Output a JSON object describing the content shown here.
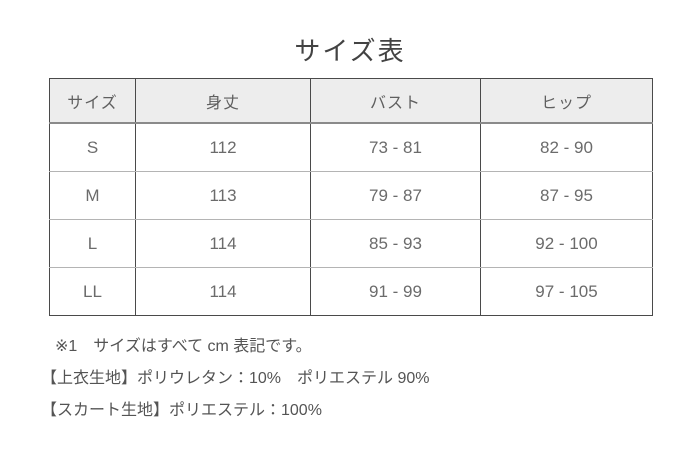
{
  "page": {
    "title": "サイズ表"
  },
  "size_table": {
    "columns": [
      "サイズ",
      "身丈",
      "バスト",
      "ヒップ"
    ],
    "rows": [
      [
        "S",
        "112",
        "73 - 81",
        "82 - 90"
      ],
      [
        "M",
        "113",
        "79 - 87",
        "87 - 95"
      ],
      [
        "L",
        "114",
        "85 - 93",
        "92 - 100"
      ],
      [
        "LL",
        "114",
        "91 - 99",
        "97 - 105"
      ]
    ],
    "unit": "cm"
  },
  "notes": {
    "unit_note": "※1　サイズはすべて cm 表記です。",
    "top_fabric_note": "【上衣生地】ポリウレタン：10%　ポリエステル 90%",
    "skirt_fabric_note": "【スカート生地】ポリエステル：100%"
  },
  "colors": {
    "header_background": "#ededed",
    "outer_border": "#4a4a4a",
    "header_underline": "#8a8a8a",
    "row_divider": "#b4b4b4",
    "title_text": "#434343",
    "cell_text": "#6b6b6b",
    "note_text": "#545454"
  }
}
